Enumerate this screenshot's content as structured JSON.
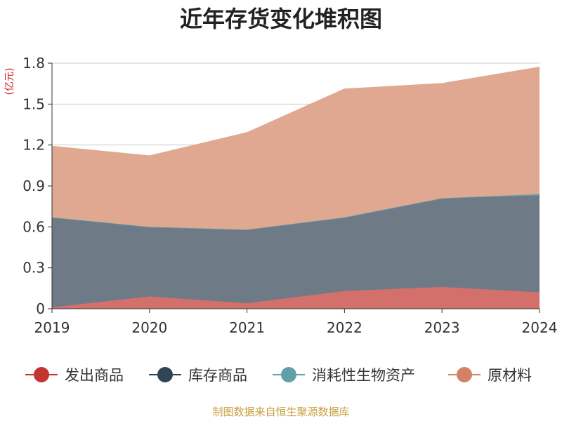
{
  "chart_data": {
    "type": "area",
    "stacked": true,
    "title": "近年存货变化堆积图",
    "unit_label": "(亿元)",
    "x": [
      "2019",
      "2020",
      "2021",
      "2022",
      "2023",
      "2024"
    ],
    "ylim": [
      0,
      1.8
    ],
    "yticks": [
      "0",
      "0.3",
      "0.6",
      "0.9",
      "1.2",
      "1.5",
      "1.8"
    ],
    "grid": true,
    "legend_position": "bottom",
    "series": [
      {
        "name": "发出商品",
        "color": "#c23531",
        "fill": "#d4706b",
        "values": [
          0.01,
          0.09,
          0.04,
          0.13,
          0.16,
          0.12
        ]
      },
      {
        "name": "库存商品",
        "color": "#2f4554",
        "fill": "#6e7b86",
        "values": [
          0.66,
          0.51,
          0.54,
          0.54,
          0.65,
          0.71
        ]
      },
      {
        "name": "消耗性生物资产",
        "color": "#61a0a8",
        "fill": "#61a0a8",
        "values": [
          0,
          0,
          0,
          0,
          0,
          0.01
        ]
      },
      {
        "name": "原材料",
        "color": "#d48265",
        "fill": "#e0a891",
        "values": [
          0.52,
          0.52,
          0.71,
          0.94,
          0.84,
          0.93
        ]
      }
    ],
    "source": "制图数据来自恒生聚源数据库"
  }
}
